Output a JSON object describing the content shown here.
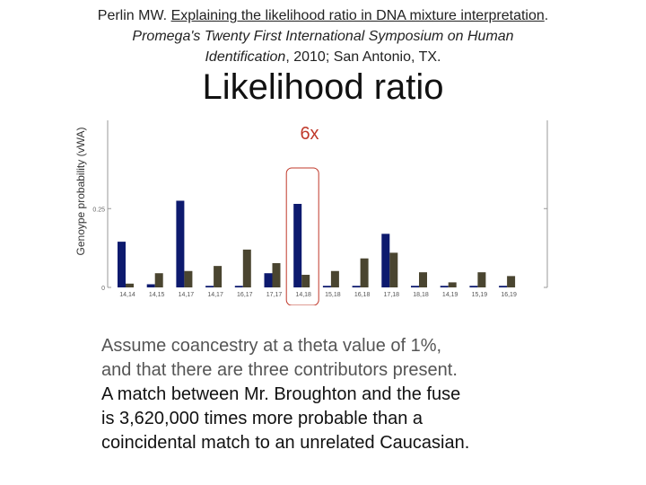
{
  "citation": {
    "author": "Perlin MW.",
    "title": "Explaining the likelihood ratio in DNA mixture interpretation",
    "title_end": ".",
    "venue": "Promega's Twenty First International Symposium on Human Identification",
    "venue_end": ", 2010; San Antonio, TX."
  },
  "slide": {
    "title": "Likelihood ratio",
    "ratio_label": "6x",
    "paragraph": {
      "line1": "Assume coancestry at a theta value of 1%,",
      "line2": "and that there are three contributors present.",
      "line3": "A match between Mr. Broughton and the fuse",
      "line4": "is 3,620,000 times more probable than a",
      "line5": "coincidental match to an unrelated Caucasian."
    }
  },
  "chart_data": {
    "type": "bar",
    "ylabel": "Genoype probability (vWA)",
    "yticks": [
      "0.25",
      "0"
    ],
    "ylim": [
      0,
      0.53
    ],
    "categories": [
      "14,14",
      "14,15",
      "14,17",
      "14,17",
      "16,17",
      "17,17",
      "14,18",
      "15,18",
      "16,18",
      "17,18",
      "18,18",
      "14,19",
      "15,19",
      "16,19"
    ],
    "series": [
      {
        "values": [
          0.145,
          0.01,
          0.275,
          0.005,
          0.005,
          0.045,
          0.265,
          0.005,
          0.005,
          0.17,
          0.005,
          0.005,
          0.005,
          0.005
        ]
      },
      {
        "values": [
          0.012,
          0.045,
          0.052,
          0.068,
          0.12,
          0.077,
          0.04,
          0.052,
          0.092,
          0.11,
          0.048,
          0.016,
          0.048,
          0.036
        ]
      }
    ],
    "colors": {
      "series0": "#0d1a6e",
      "series1": "#4a4530",
      "highlight": "#c0392b"
    },
    "highlight_index": 6
  }
}
